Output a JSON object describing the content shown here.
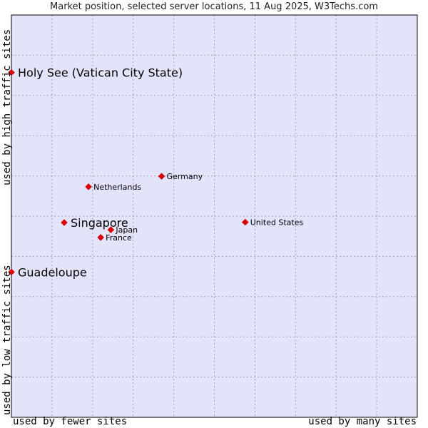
{
  "chart_data": {
    "type": "scatter",
    "title": "Market position, selected server locations, 11 Aug 2025, W3Techs.com",
    "xlabel_left": "used by fewer sites",
    "xlabel_right": "used by many sites",
    "ylabel_top": "used by high traffic sites",
    "ylabel_bottom": "used by low traffic sites",
    "xlim": [
      0,
      100
    ],
    "ylim": [
      0,
      100
    ],
    "grid": true,
    "background": "#e3e4fa",
    "point_color": "#e00000",
    "points": [
      {
        "label": "Holy See (Vatican City State)",
        "x": 0.0,
        "y": 85.7,
        "emphasis": true
      },
      {
        "label": "Guadeloupe",
        "x": 0.0,
        "y": 36.1,
        "emphasis": true
      },
      {
        "label": "Singapore",
        "x": 13.0,
        "y": 48.4,
        "emphasis": true
      },
      {
        "label": "Netherlands",
        "x": 19.0,
        "y": 57.3,
        "emphasis": false
      },
      {
        "label": "Germany",
        "x": 37.0,
        "y": 59.9,
        "emphasis": false
      },
      {
        "label": "Japan",
        "x": 24.5,
        "y": 46.6,
        "emphasis": false
      },
      {
        "label": "France",
        "x": 22.0,
        "y": 44.7,
        "emphasis": false
      },
      {
        "label": "United States",
        "x": 57.6,
        "y": 48.5,
        "emphasis": false
      }
    ]
  }
}
